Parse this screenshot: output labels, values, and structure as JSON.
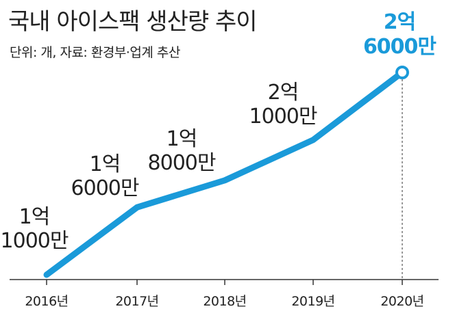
{
  "header": {
    "title": "국내 아이스팩 생산량 추이",
    "subtitle": "단위: 개, 자료: 환경부·업계 추산"
  },
  "colors": {
    "line": "#1a9ad9",
    "highlight": "#1a9ad9",
    "text": "#222222",
    "axis": "#333333"
  },
  "chart_data": {
    "type": "line",
    "title": "국내 아이스팩 생산량 추이",
    "subtitle": "단위: 개, 자료: 환경부·업계 추산",
    "categories": [
      "2016년",
      "2017년",
      "2018년",
      "2019년",
      "2020년"
    ],
    "values": [
      110000000,
      160000000,
      180000000,
      210000000,
      260000000
    ],
    "data_labels": [
      [
        "1억",
        "1000만"
      ],
      [
        "1억",
        "6000만"
      ],
      [
        "1억",
        "8000만"
      ],
      [
        "2억",
        "1000만"
      ],
      [
        "2억",
        "6000만"
      ]
    ],
    "highlight_index": 4,
    "grid": false,
    "legend": "none"
  }
}
